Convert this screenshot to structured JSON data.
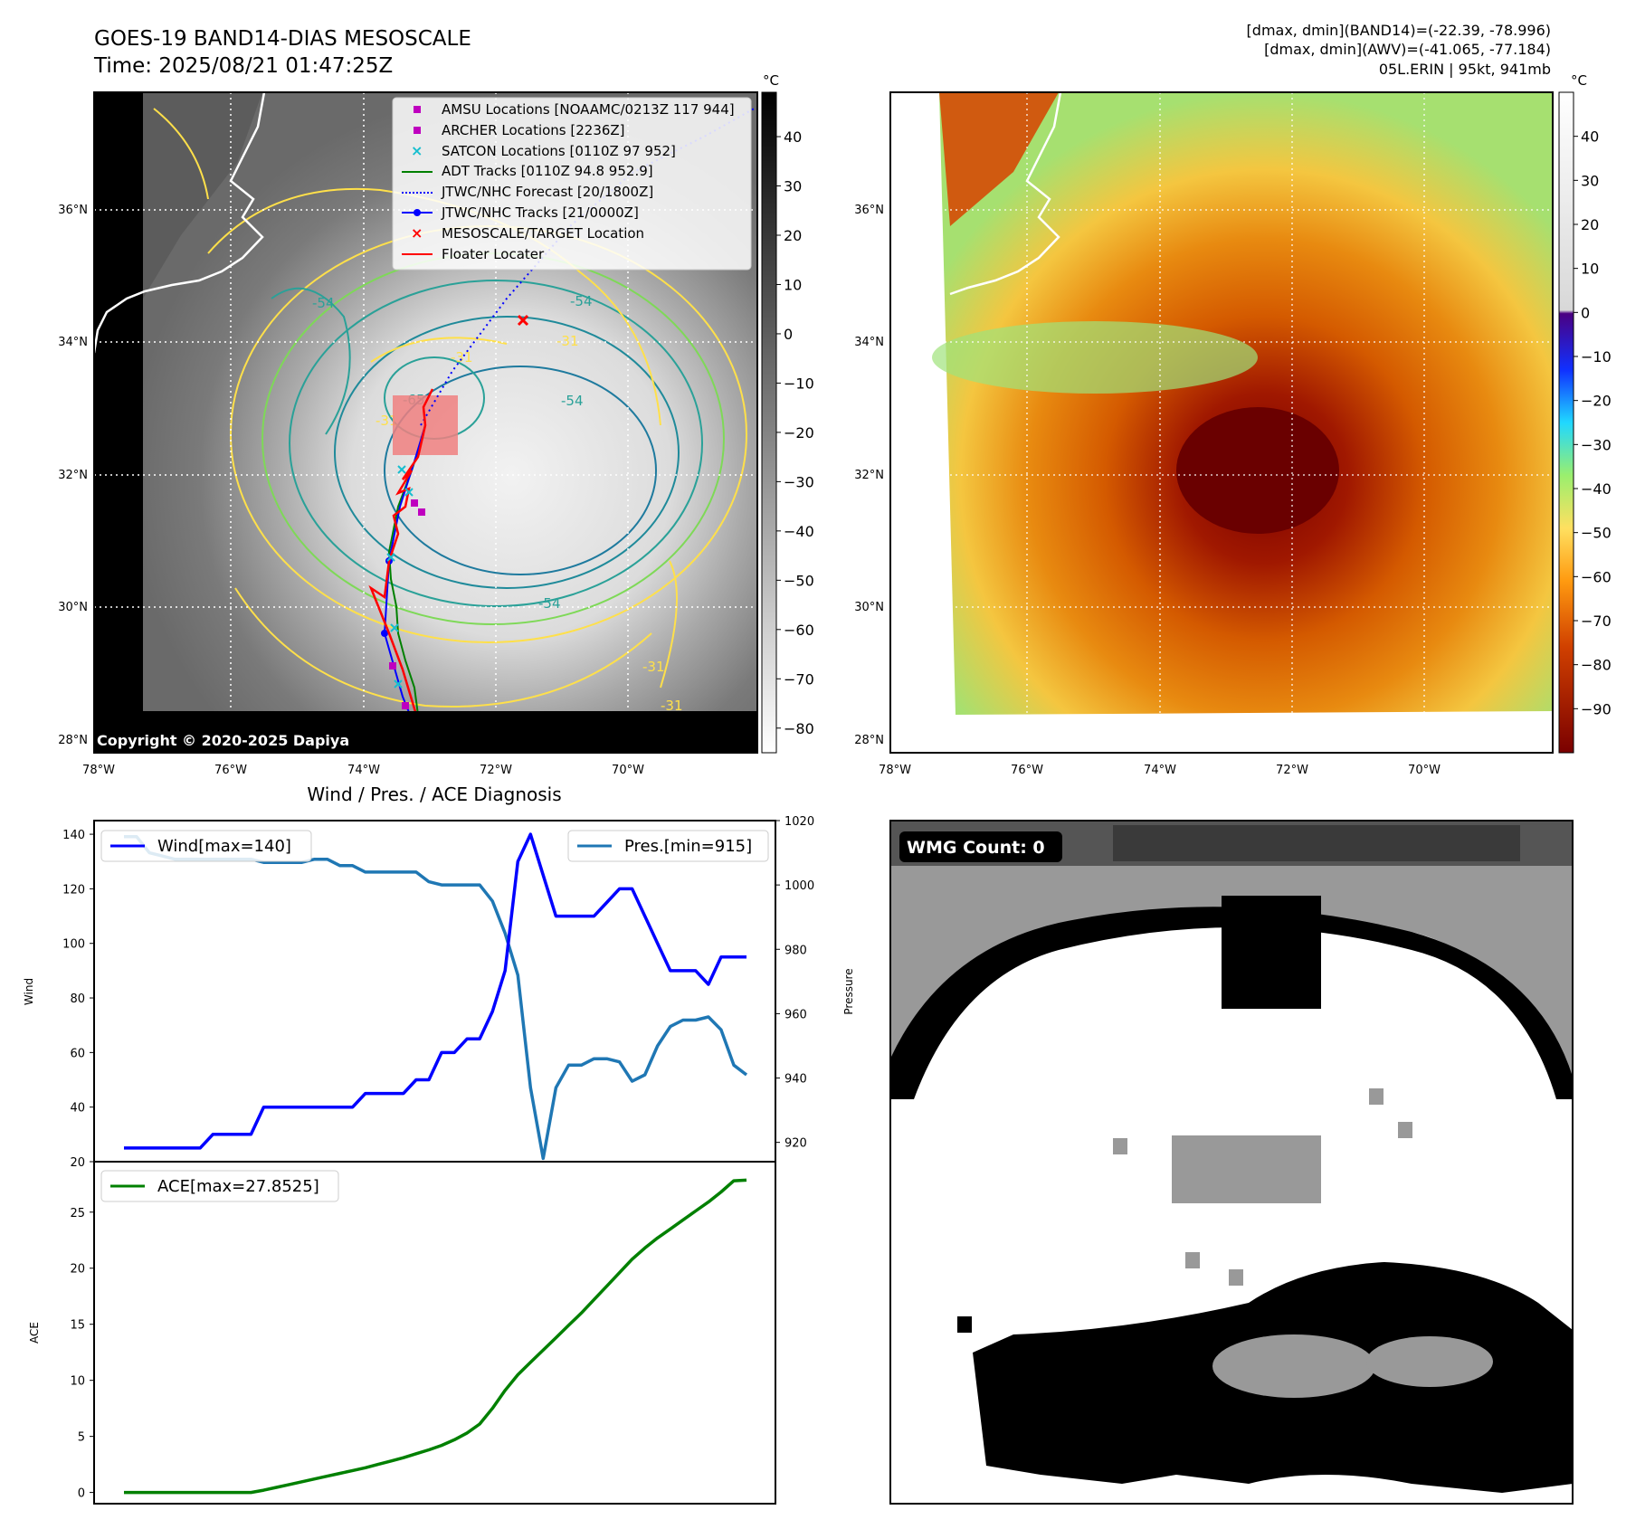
{
  "title": {
    "line1": "GOES-19 BAND14-DIAS MESOSCALE",
    "line2": "Time: 2025/08/21 01:47:25Z"
  },
  "header_right": {
    "line1": "[dmax, dmin](BAND14)=(-22.39, -78.996)",
    "line2": "[dmax, dmin](AWV)=(-41.065, -77.184)",
    "line3": "05L.ERIN | 95kt, 941mb"
  },
  "copyright": "Copyright © 2020-2025 Dapiya",
  "map": {
    "lat_labels": [
      "36°N",
      "34°N",
      "32°N",
      "30°N",
      "28°N"
    ],
    "lon_labels": [
      "78°W",
      "76°W",
      "74°W",
      "72°W",
      "70°W"
    ],
    "contour_labels": [
      "-54",
      "-54",
      "-31",
      "-31",
      "-54",
      "-65",
      "-31",
      "-54",
      "-31",
      "-31"
    ]
  },
  "legend_map": [
    {
      "label": "AMSU Locations [NOAAMC/0213Z 117 944]",
      "color": "#bf00bf",
      "marker": "square"
    },
    {
      "label": "ARCHER Locations [2236Z]",
      "color": "#bf00bf",
      "marker": "square"
    },
    {
      "label": "SATCON Locations [0110Z 97 952]",
      "color": "#17becf",
      "marker": "x"
    },
    {
      "label": "ADT Tracks [0110Z 94.8 952.9]",
      "color": "#008000",
      "marker": "line"
    },
    {
      "label": "JTWC/NHC Forecast [20/1800Z]",
      "color": "#0000ff",
      "marker": "dotted"
    },
    {
      "label": "JTWC/NHC Tracks [21/0000Z]",
      "color": "#0000ff",
      "marker": "line-dot"
    },
    {
      "label": "MESOSCALE/TARGET Location",
      "color": "#ff0000",
      "marker": "x"
    },
    {
      "label": "Floater Locater",
      "color": "#ff0000",
      "marker": "line"
    }
  ],
  "colorbar_band14": {
    "unit": "°C",
    "ticks": [
      "40",
      "30",
      "20",
      "10",
      "0",
      "−10",
      "−20",
      "−30",
      "−40",
      "−50",
      "−60",
      "−70",
      "−80"
    ]
  },
  "colorbar_awv": {
    "unit": "°C",
    "ticks": [
      "40",
      "30",
      "20",
      "10",
      "0",
      "−10",
      "−20",
      "−30",
      "−40",
      "−50",
      "−60",
      "−70",
      "−80",
      "−90"
    ]
  },
  "wmg": {
    "label": "WMG Count: 0"
  },
  "chart_data": [
    {
      "type": "line",
      "title": "Wind / Pres. / ACE Diagnosis",
      "ylabel": "Wind",
      "ylim": [
        20,
        145
      ],
      "yticks": [
        "20",
        "40",
        "60",
        "80",
        "100",
        "120",
        "140"
      ],
      "series": [
        {
          "name": "Wind[max=140]",
          "color": "#0000ff",
          "values": [
            25,
            25,
            25,
            25,
            25,
            25,
            25,
            30,
            30,
            30,
            30,
            40,
            40,
            40,
            40,
            40,
            40,
            40,
            40,
            45,
            45,
            45,
            45,
            50,
            50,
            60,
            60,
            65,
            65,
            75,
            90,
            130,
            140,
            125,
            110,
            110,
            110,
            110,
            115,
            120,
            120,
            110,
            100,
            90,
            90,
            90,
            85,
            95,
            95,
            95
          ]
        }
      ],
      "y2label": "Pressure",
      "y2lim": [
        914,
        1020
      ],
      "y2ticks": [
        "920",
        "940",
        "960",
        "980",
        "1000",
        "1020"
      ],
      "series2": [
        {
          "name": "Pres.[min=915]",
          "color": "#1f77b4",
          "values": [
            1015,
            1015,
            1010,
            1009,
            1008,
            1008,
            1008,
            1008,
            1008,
            1008,
            1008,
            1007,
            1007,
            1007,
            1007,
            1008,
            1008,
            1006,
            1006,
            1004,
            1004,
            1004,
            1004,
            1004,
            1001,
            1000,
            1000,
            1000,
            1000,
            995,
            985,
            972,
            937,
            915,
            937,
            944,
            944,
            946,
            946,
            945,
            939,
            941,
            950,
            956,
            958,
            958,
            959,
            955,
            944,
            941
          ]
        }
      ]
    },
    {
      "type": "line",
      "ylabel": "ACE",
      "ylim": [
        -1,
        29.5
      ],
      "yticks": [
        "0",
        "5",
        "10",
        "15",
        "20",
        "25"
      ],
      "series": [
        {
          "name": "ACE[max=27.8525]",
          "color": "#008000",
          "values": [
            0,
            0,
            0,
            0,
            0,
            0,
            0,
            0,
            0,
            0,
            0,
            0.2,
            0.45,
            0.7,
            0.95,
            1.2,
            1.45,
            1.7,
            1.95,
            2.2,
            2.5,
            2.8,
            3.1,
            3.45,
            3.8,
            4.2,
            4.7,
            5.3,
            6.1,
            7.5,
            9.1,
            10.5,
            11.6,
            12.7,
            13.8,
            14.9,
            16.0,
            17.2,
            18.4,
            19.6,
            20.8,
            21.8,
            22.7,
            23.5,
            24.3,
            25.1,
            25.9,
            26.8,
            27.8,
            27.85
          ]
        }
      ]
    }
  ]
}
